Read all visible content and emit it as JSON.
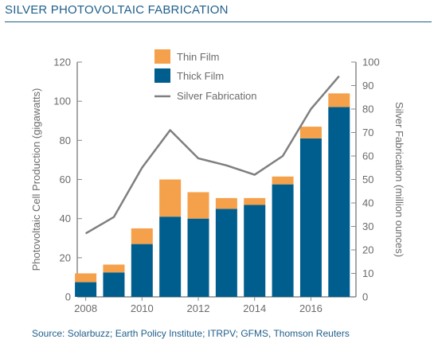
{
  "title": "SILVER PHOTOVOLTAIC FABRICATION",
  "source": "Source: Solarbuzz; Earth Policy Institute; ITRPV; GFMS, Thomson Reuters",
  "chart_data": {
    "type": "bar",
    "stacked": true,
    "ylabel": "Photovoltaic Cell Production (gigawatts)",
    "y2label": "Silver Fabrication (million ounces)",
    "ylim": [
      0,
      120
    ],
    "y2lim": [
      0,
      100
    ],
    "yticks": [
      0,
      20,
      40,
      60,
      80,
      100,
      120
    ],
    "y2ticks": [
      0,
      10,
      20,
      30,
      40,
      50,
      60,
      70,
      80,
      90,
      100
    ],
    "xlim": [
      2007.7,
      2017.6
    ],
    "xticks": [
      2008,
      2010,
      2012,
      2014,
      2016
    ],
    "categories": [
      2008,
      2009,
      2010,
      2011,
      2012,
      2013,
      2014,
      2015,
      2016,
      2017
    ],
    "series": [
      {
        "name": "Thick Film",
        "color": "#005e8f",
        "values": [
          7.5,
          12.5,
          27,
          41,
          40,
          45,
          47,
          57.5,
          81,
          97
        ]
      },
      {
        "name": "Thin Film",
        "color": "#f5a04a",
        "values": [
          4.5,
          4,
          8,
          19,
          13.5,
          5.5,
          3.5,
          4,
          6,
          7
        ]
      },
      {
        "name": "Silver Fabrication",
        "color": "#7f7f7f",
        "axis": "right",
        "line": true,
        "x": [
          2008,
          2009,
          2010,
          2011,
          2012,
          2013,
          2014,
          2015,
          2016,
          2017
        ],
        "values": [
          27,
          34,
          55,
          71,
          59,
          56,
          52,
          60,
          80,
          94
        ]
      }
    ],
    "legend": [
      "Thin Film",
      "Thick Film",
      "Silver Fabrication"
    ],
    "legend_position": "top-center",
    "grid": false
  }
}
